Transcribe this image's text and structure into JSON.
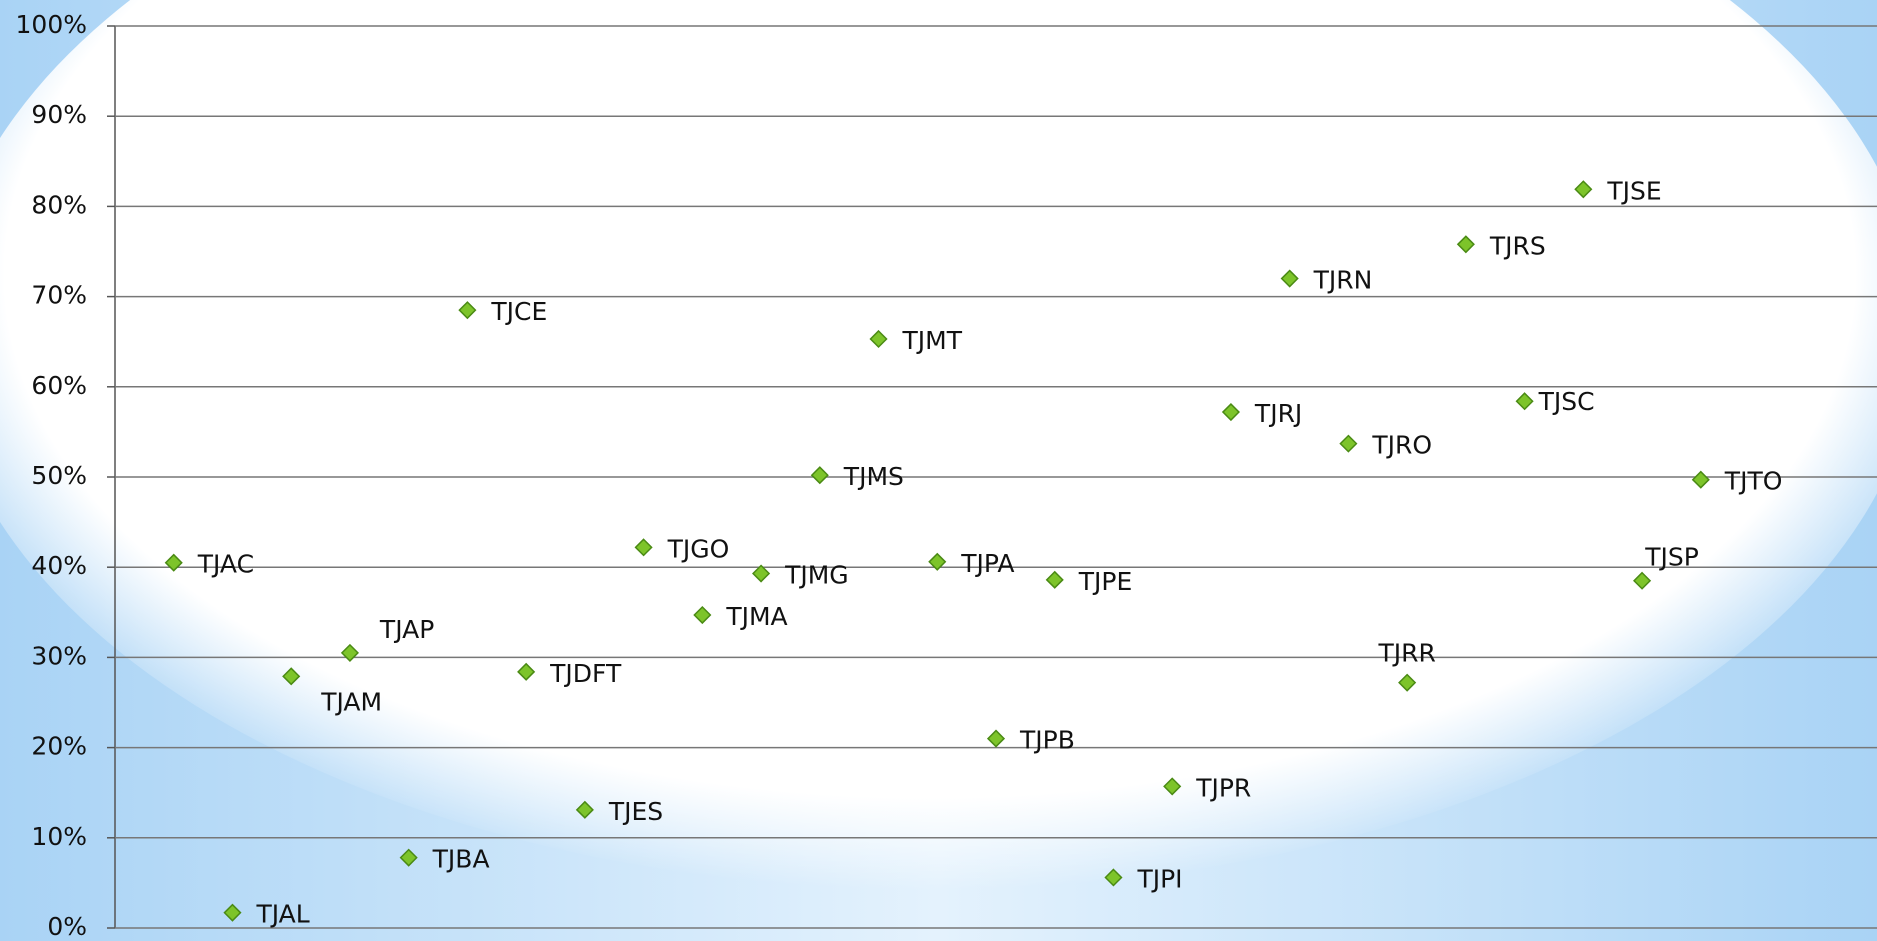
{
  "chart_data": {
    "type": "scatter",
    "x": [
      1,
      2,
      3,
      4,
      5,
      6,
      7,
      8,
      9,
      10,
      11,
      12,
      13,
      14,
      15,
      16,
      17,
      18,
      19,
      20,
      21,
      22,
      23,
      24,
      25,
      26,
      27
    ],
    "values": [
      40.5,
      1.7,
      27.9,
      30.5,
      7.8,
      68.5,
      28.4,
      13.1,
      42.2,
      34.7,
      39.3,
      50.2,
      65.3,
      40.6,
      21.0,
      38.6,
      5.6,
      15.7,
      57.2,
      72.0,
      53.7,
      27.2,
      75.8,
      58.4,
      81.9,
      38.5,
      49.7
    ],
    "point_labels": [
      "TJAC",
      "TJAL",
      "TJAM",
      "TJAP",
      "TJBA",
      "TJCE",
      "TJDFT",
      "TJES",
      "TJGO",
      "TJMA",
      "TJMG",
      "TJMS",
      "TJMT",
      "TJPA",
      "TJPB",
      "TJPE",
      "TJPI",
      "TJPR",
      "TJRJ",
      "TJRN",
      "TJRO",
      "TJRR",
      "TJRS",
      "TJSC",
      "TJSE",
      "TJSP",
      "TJTO"
    ],
    "color": "#7dc42a",
    "xlim": [
      0,
      30
    ],
    "ylim": [
      0,
      100
    ],
    "yticks": [
      {
        "value": 0,
        "label": "0%"
      },
      {
        "value": 10,
        "label": "10%"
      },
      {
        "value": 20,
        "label": "20%"
      },
      {
        "value": 30,
        "label": "30%"
      },
      {
        "value": 40,
        "label": "40%"
      },
      {
        "value": 50,
        "label": "50%"
      },
      {
        "value": 60,
        "label": "60%"
      },
      {
        "value": 70,
        "label": "70%"
      },
      {
        "value": 80,
        "label": "80%"
      },
      {
        "value": 90,
        "label": "90%"
      },
      {
        "value": 100,
        "label": "100%"
      }
    ],
    "grid": true
  }
}
